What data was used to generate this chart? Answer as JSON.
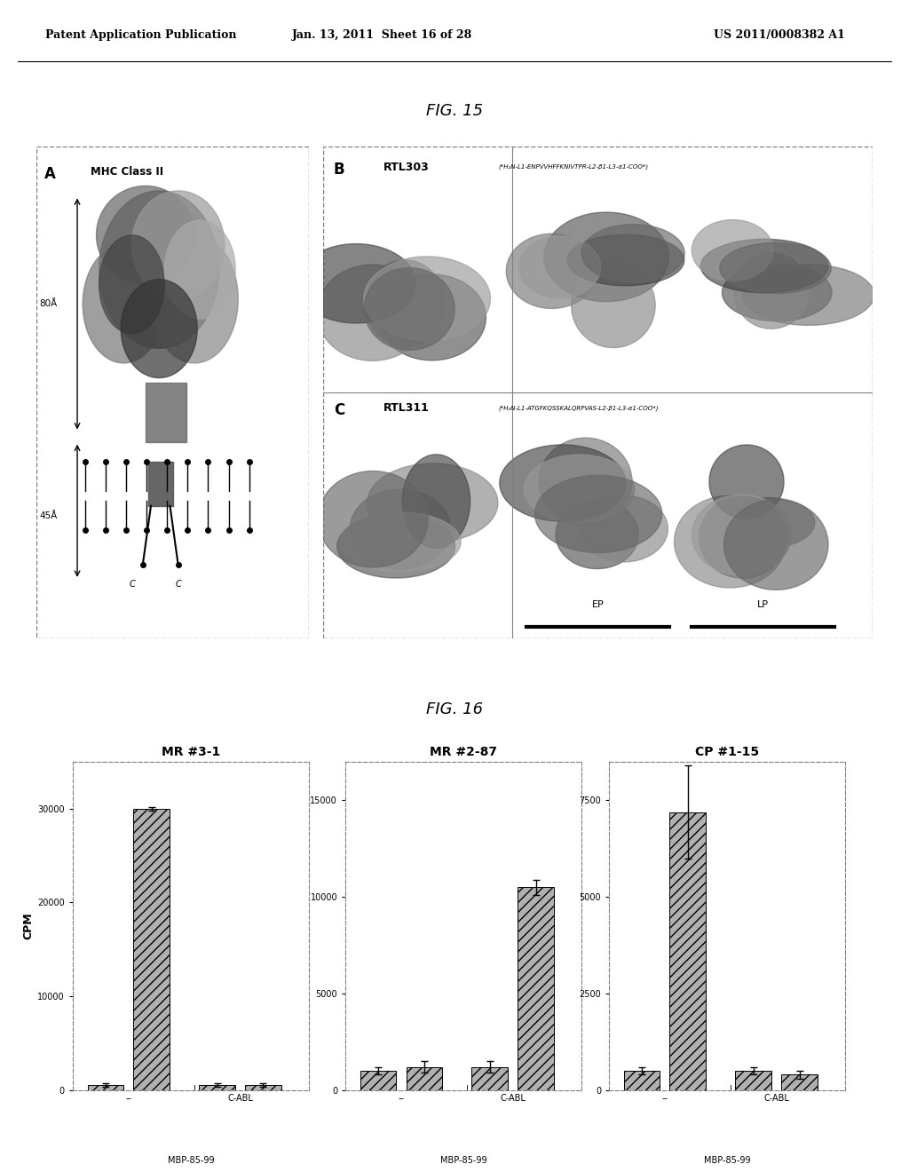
{
  "header_left": "Patent Application Publication",
  "header_mid": "Jan. 13, 2011  Sheet 16 of 28",
  "header_right": "US 2011/0008382 A1",
  "fig15_title": "FIG. 15",
  "fig16_title": "FIG. 16",
  "fig15_label_A": "A",
  "fig15_label_MHC": "MHC Class II",
  "fig15_label_80A": "80Å",
  "fig15_label_45A": "45Å",
  "fig15_label_B": "B",
  "fig15_label_RTL303": "RTL303",
  "fig15_label_RTL303_sub": "(*H₂N-L1-ENPVVHFFKNIVTPR-L2-β1-L3-α1-COO*)",
  "fig15_label_C": "C",
  "fig15_label_RTL311": "RTL311",
  "fig15_label_RTL311_sub": "(*H₂N-L1-ATGFKQSSKALQRPVAS-L2-β1-L3-α1-COO*)",
  "fig15_label_EP": "EP",
  "fig15_label_LP": "LP",
  "panel_titles": [
    "MR #3-1",
    "MR #2-87",
    "CP #1-15"
  ],
  "cpm_label": "CPM",
  "xlabel_label": "MBP-85-99",
  "yticks_1": [
    0,
    10000,
    20000,
    30000
  ],
  "yticks_2": [
    0,
    5000,
    10000,
    15000
  ],
  "yticks_3": [
    0,
    2500,
    5000,
    7500
  ],
  "ylim_1": [
    0,
    35000
  ],
  "ylim_2": [
    0,
    17000
  ],
  "ylim_3": [
    0,
    8500
  ],
  "bars_1": [
    500,
    30000,
    500,
    500
  ],
  "bars_2": [
    1000,
    1200,
    1200,
    10500
  ],
  "bars_3": [
    500,
    7200,
    500,
    400
  ],
  "errors_1": [
    200,
    200,
    200,
    200
  ],
  "errors_2": [
    200,
    300,
    300,
    400
  ],
  "errors_3": [
    100,
    1200,
    100,
    100
  ],
  "bar_color": "#b0b0b0",
  "bg_color": "#ffffff",
  "text_color": "#000000"
}
